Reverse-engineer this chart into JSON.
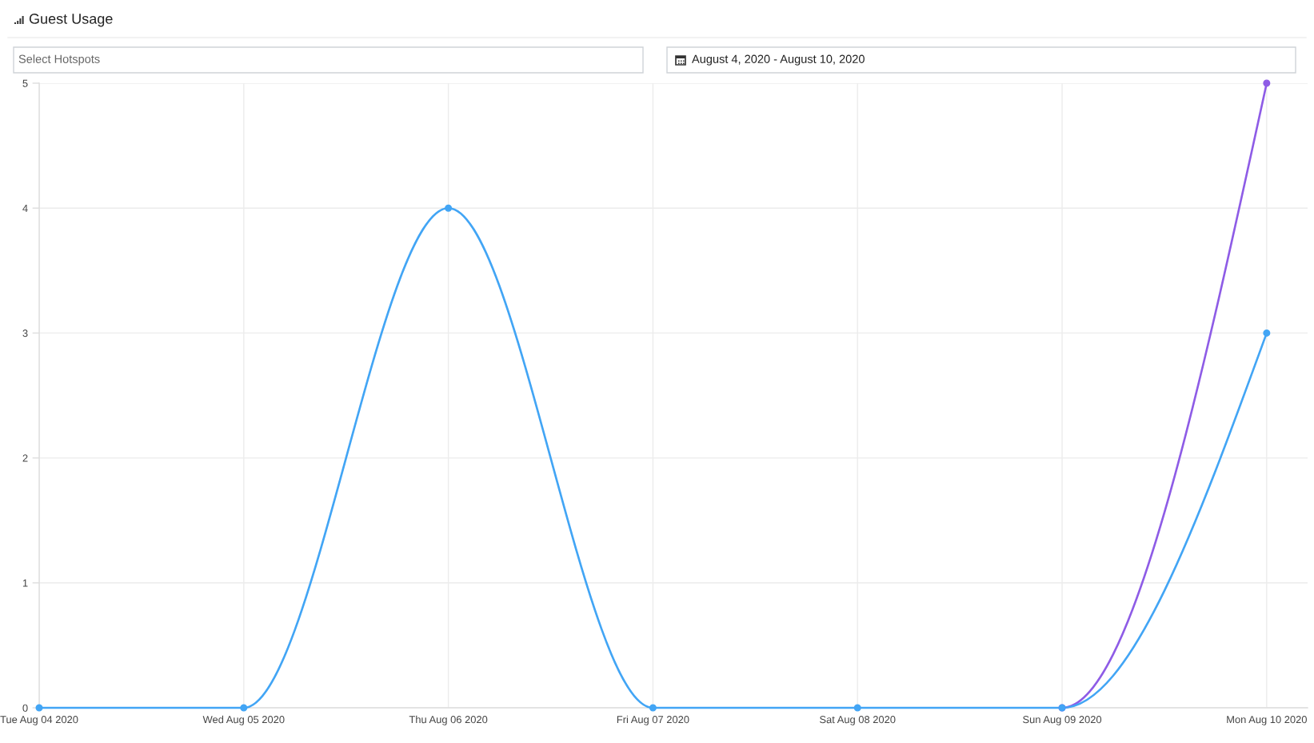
{
  "chart_data": {
    "type": "line",
    "title": "Guest Usage",
    "annotations": [
      "Select Hotspots",
      "August 4, 2020 - August 10, 2020"
    ],
    "x": [
      "2020-08-04",
      "2020-08-05",
      "2020-08-06",
      "2020-08-07",
      "2020-08-08",
      "2020-08-09",
      "2020-08-10"
    ],
    "series": [
      {
        "color": "#8e5ce6",
        "values": [
          null,
          null,
          null,
          null,
          null,
          0,
          5
        ]
      },
      {
        "color": "#42a5f5",
        "values": [
          0,
          0,
          4,
          0,
          0,
          0,
          3
        ]
      }
    ],
    "xlim": [
      "2020-08-04",
      "2020-08-10T04:48"
    ],
    "xticks": [
      {
        "value": "2020-08-04",
        "label": "Tue Aug 04 2020"
      },
      {
        "value": "2020-08-05",
        "label": "Wed Aug 05 2020"
      },
      {
        "value": "2020-08-06",
        "label": "Thu Aug 06 2020"
      },
      {
        "value": "2020-08-07",
        "label": "Fri Aug 07 2020"
      },
      {
        "value": "2020-08-08",
        "label": "Sat Aug 08 2020"
      },
      {
        "value": "2020-08-09",
        "label": "Sun Aug 09 2020"
      },
      {
        "value": "2020-08-10",
        "label": "Mon Aug 10 2020"
      }
    ],
    "ylim": [
      0,
      5
    ],
    "yticks": [
      0,
      1,
      2,
      3,
      4,
      5
    ],
    "grid": true,
    "marker": "circle",
    "line_style": "solid"
  }
}
